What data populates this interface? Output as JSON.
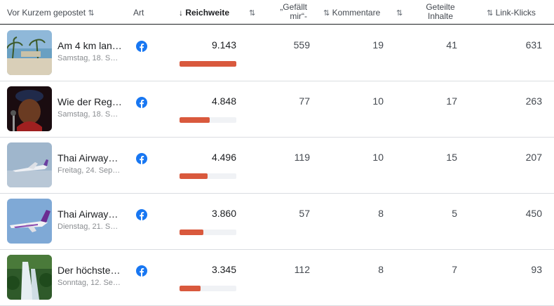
{
  "headers": {
    "recent": "Vor Kurzem gepostet",
    "type": "Art",
    "reach": "Reichweite",
    "likes_line1": "„Gefällt",
    "likes_line2": "mir“-",
    "comments": "Kommentare",
    "shares_line1": "Geteilte",
    "shares_line2": "Inhalte",
    "link_clicks": "Link-Klicks",
    "sort_icon": "⇅",
    "sort_desc_icon": "↓"
  },
  "colors": {
    "bar": "#d9593d",
    "facebook": "#1877f2"
  },
  "rows": [
    {
      "title": "Am 4 km lan…",
      "date": "Samstag, 18. S…",
      "thumb": "beach-photo",
      "reach": "9.143",
      "reach_fraction": 1.0,
      "likes": "559",
      "comments": "19",
      "shares": "41",
      "clicks": "631"
    },
    {
      "title": "Wie der Regg…",
      "date": "Samstag, 18. S…",
      "thumb": "reggae-singer-photo",
      "reach": "4.848",
      "reach_fraction": 0.53,
      "likes": "77",
      "comments": "10",
      "shares": "17",
      "clicks": "263"
    },
    {
      "title": "Thai Airways…",
      "date": "Freitag, 24. Sep…",
      "thumb": "airplane-sky-photo",
      "reach": "4.496",
      "reach_fraction": 0.49,
      "likes": "119",
      "comments": "10",
      "shares": "15",
      "clicks": "207"
    },
    {
      "title": "Thai Airways…",
      "date": "Dienstag, 21. S…",
      "thumb": "airplane-purple-photo",
      "reach": "3.860",
      "reach_fraction": 0.42,
      "likes": "57",
      "comments": "8",
      "shares": "5",
      "clicks": "450"
    },
    {
      "title": "Der höchste …",
      "date": "Sonntag, 12. Se…",
      "thumb": "waterfall-photo",
      "reach": "3.345",
      "reach_fraction": 0.37,
      "likes": "112",
      "comments": "8",
      "shares": "7",
      "clicks": "93"
    }
  ]
}
